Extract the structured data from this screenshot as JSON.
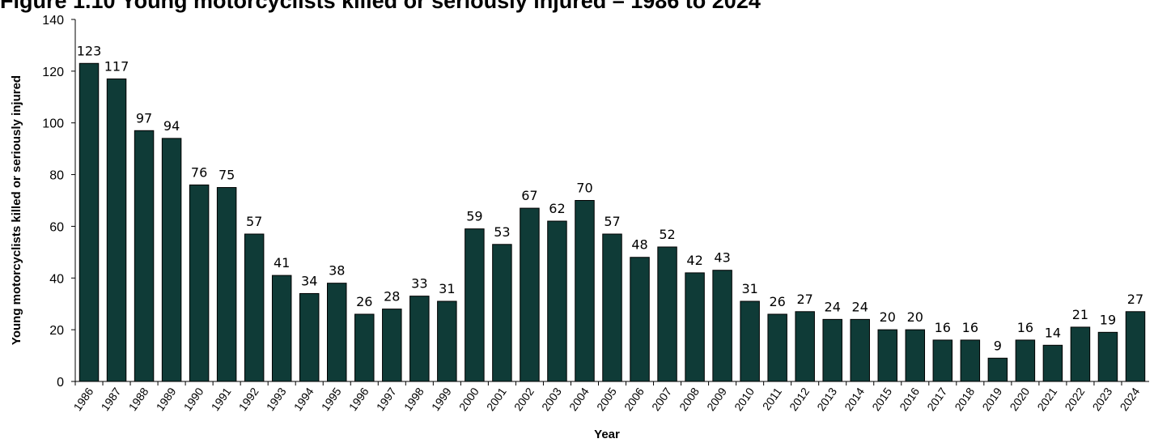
{
  "chart_data": {
    "type": "bar",
    "title": "Figure 1.10 Young motorcyclists killed or seriously injured – 1986 to 2024",
    "xlabel": "Year",
    "ylabel": "Young motorcyclists killed or seriously injured",
    "ylim": [
      0,
      140
    ],
    "yticks": [
      "0",
      "20",
      "40",
      "60",
      "80",
      "100",
      "120",
      "140"
    ],
    "categories": [
      "1986",
      "1987",
      "1988",
      "1989",
      "1990",
      "1991",
      "1992",
      "1993",
      "1994",
      "1995",
      "1996",
      "1997",
      "1998",
      "1999",
      "2000",
      "2001",
      "2002",
      "2003",
      "2004",
      "2005",
      "2006",
      "2007",
      "2008",
      "2009",
      "2010",
      "2011",
      "2012",
      "2013",
      "2014",
      "2015",
      "2016",
      "2017",
      "2018",
      "2019",
      "2020",
      "2021",
      "2022",
      "2023",
      "2024"
    ],
    "values": [
      123,
      117,
      97,
      94,
      76,
      75,
      57,
      41,
      34,
      38,
      26,
      28,
      33,
      31,
      59,
      53,
      67,
      62,
      70,
      57,
      48,
      52,
      42,
      43,
      31,
      26,
      27,
      24,
      24,
      20,
      20,
      16,
      16,
      9,
      16,
      14,
      21,
      19,
      27
    ],
    "bar_color": "#0f3b37",
    "grid": false,
    "legend": "none"
  }
}
